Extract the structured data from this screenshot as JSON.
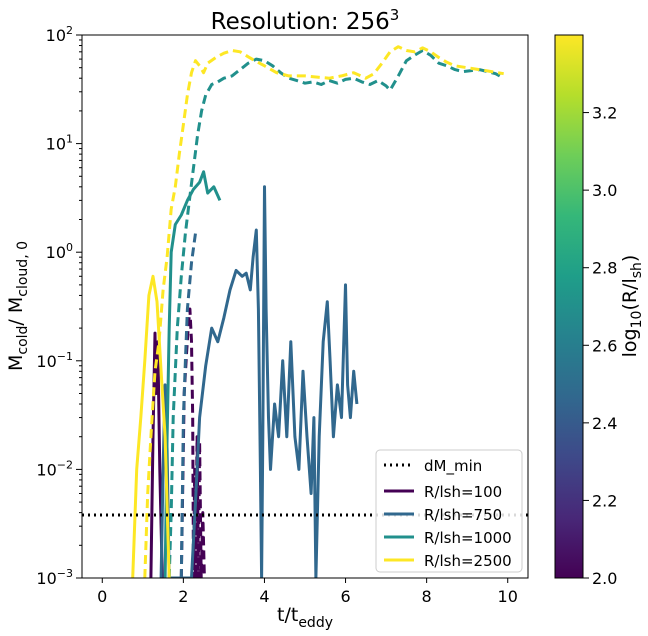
{
  "chart_data": {
    "type": "line",
    "title": "Resolution: 256",
    "title_superscript": "3",
    "xlabel": "t/t",
    "xlabel_subscript": "eddy",
    "ylabel_parts": [
      "M",
      "cold",
      "/ M",
      "cloud, 0"
    ],
    "yscale": "log",
    "xlim": [
      -0.5,
      10.5
    ],
    "ylim": [
      0.001,
      100
    ],
    "xticks": [
      0,
      2,
      4,
      6,
      8,
      10
    ],
    "yticks": [
      {
        "value": 0.001,
        "base": "10",
        "exp": "−3"
      },
      {
        "value": 0.01,
        "base": "10",
        "exp": "−2"
      },
      {
        "value": 0.1,
        "base": "10",
        "exp": "−1"
      },
      {
        "value": 1,
        "base": "10",
        "exp": "0"
      },
      {
        "value": 10,
        "base": "10",
        "exp": "1"
      },
      {
        "value": 100,
        "base": "10",
        "exp": "2"
      }
    ],
    "grid": false,
    "legend_position": "lower-right",
    "threshold": {
      "name": "dM_min",
      "value": 0.0038,
      "style": "dotted",
      "color": "#000000"
    },
    "series": [
      {
        "name": "R/lsh=100",
        "color": "#440154",
        "solid": [
          [
            1.2,
            0.001
          ],
          [
            1.25,
            0.02
          ],
          [
            1.3,
            0.18
          ],
          [
            1.33,
            0.05
          ],
          [
            1.37,
            0.15
          ],
          [
            1.42,
            0.01
          ],
          [
            1.48,
            0.001
          ]
        ],
        "dashed": [
          [
            1.95,
            0.001
          ],
          [
            2.02,
            0.05
          ],
          [
            2.08,
            0.12
          ],
          [
            2.12,
            0.2
          ],
          [
            2.16,
            0.3
          ],
          [
            2.2,
            0.15
          ],
          [
            2.23,
            0.03
          ],
          [
            2.25,
            0.001
          ],
          [
            2.28,
            0.01
          ],
          [
            2.3,
            0.001
          ],
          [
            2.34,
            0.02
          ],
          [
            2.37,
            0.001
          ],
          [
            2.4,
            0.018
          ],
          [
            2.44,
            0.001
          ],
          [
            2.48,
            0.004
          ],
          [
            2.52,
            0.001
          ]
        ]
      },
      {
        "name": "R/lsh=750",
        "color": "#31688e",
        "solid": [
          [
            1.45,
            0.001
          ],
          [
            1.5,
            0.01
          ],
          [
            1.55,
            0.06
          ],
          [
            1.6,
            0.015
          ],
          [
            1.65,
            0.001
          ],
          [
            2.2,
            0.001
          ],
          [
            2.3,
            0.005
          ],
          [
            2.4,
            0.03
          ],
          [
            2.55,
            0.09
          ],
          [
            2.7,
            0.2
          ],
          [
            2.85,
            0.15
          ],
          [
            3.0,
            0.25
          ],
          [
            3.15,
            0.45
          ],
          [
            3.3,
            0.68
          ],
          [
            3.45,
            0.6
          ],
          [
            3.55,
            0.64
          ],
          [
            3.65,
            0.45
          ],
          [
            3.72,
            0.9
          ],
          [
            3.8,
            1.6
          ],
          [
            3.85,
            0.3
          ],
          [
            3.9,
            0.01
          ],
          [
            3.93,
            0.001
          ],
          [
            3.96,
            0.02
          ],
          [
            4.0,
            4.0
          ],
          [
            4.04,
            0.3
          ],
          [
            4.1,
            0.03
          ],
          [
            4.15,
            0.01
          ],
          [
            4.25,
            0.04
          ],
          [
            4.35,
            0.02
          ],
          [
            4.45,
            0.1
          ],
          [
            4.55,
            0.02
          ],
          [
            4.65,
            0.15
          ],
          [
            4.75,
            0.02
          ],
          [
            4.85,
            0.01
          ],
          [
            4.95,
            0.08
          ],
          [
            5.05,
            0.02
          ],
          [
            5.15,
            0.006
          ],
          [
            5.22,
            0.03
          ],
          [
            5.27,
            0.001
          ],
          [
            5.35,
            0.02
          ],
          [
            5.45,
            0.15
          ],
          [
            5.55,
            0.35
          ],
          [
            5.62,
            0.1
          ],
          [
            5.7,
            0.02
          ],
          [
            5.8,
            0.06
          ],
          [
            5.9,
            0.03
          ],
          [
            6.0,
            0.5
          ],
          [
            6.05,
            0.06
          ],
          [
            6.12,
            0.03
          ],
          [
            6.2,
            0.08
          ],
          [
            6.28,
            0.04
          ]
        ],
        "dashed": [
          [
            1.95,
            0.001
          ],
          [
            2.0,
            0.03
          ],
          [
            2.05,
            0.1
          ],
          [
            2.1,
            0.3
          ],
          [
            2.2,
            0.8
          ],
          [
            2.3,
            1.5
          ]
        ]
      },
      {
        "name": "R/lsh=1000",
        "color": "#21908c",
        "solid": [
          [
            1.55,
            0.001
          ],
          [
            1.6,
            0.02
          ],
          [
            1.65,
            0.2
          ],
          [
            1.7,
            1.0
          ],
          [
            1.8,
            1.8
          ],
          [
            1.95,
            2.2
          ],
          [
            2.1,
            3.0
          ],
          [
            2.25,
            3.8
          ],
          [
            2.4,
            4.4
          ],
          [
            2.5,
            5.5
          ],
          [
            2.6,
            3.5
          ],
          [
            2.75,
            4.0
          ],
          [
            2.9,
            3.0
          ]
        ],
        "dashed": [
          [
            1.65,
            0.001
          ],
          [
            1.7,
            0.004
          ],
          [
            1.75,
            0.03
          ],
          [
            1.85,
            0.2
          ],
          [
            1.95,
            0.6
          ],
          [
            2.05,
            1.5
          ],
          [
            2.15,
            3.0
          ],
          [
            2.25,
            6.0
          ],
          [
            2.35,
            12
          ],
          [
            2.45,
            20
          ],
          [
            2.55,
            28
          ],
          [
            2.7,
            35
          ],
          [
            2.85,
            37
          ],
          [
            3.0,
            40
          ],
          [
            3.2,
            42
          ],
          [
            3.4,
            48
          ],
          [
            3.6,
            55
          ],
          [
            3.8,
            60
          ],
          [
            4.0,
            58
          ],
          [
            4.2,
            52
          ],
          [
            4.4,
            45
          ],
          [
            4.6,
            40
          ],
          [
            4.8,
            38
          ],
          [
            5.0,
            36
          ],
          [
            5.2,
            37
          ],
          [
            5.4,
            35
          ],
          [
            5.6,
            38
          ],
          [
            5.8,
            36
          ],
          [
            6.0,
            39
          ],
          [
            6.2,
            40
          ],
          [
            6.4,
            37
          ],
          [
            6.6,
            35
          ],
          [
            6.8,
            38
          ],
          [
            7.0,
            34
          ],
          [
            7.1,
            31
          ],
          [
            7.3,
            42
          ],
          [
            7.5,
            58
          ],
          [
            7.7,
            65
          ],
          [
            7.9,
            72
          ],
          [
            8.1,
            65
          ],
          [
            8.3,
            55
          ],
          [
            8.5,
            52
          ],
          [
            8.7,
            48
          ],
          [
            8.9,
            46
          ],
          [
            9.1,
            47
          ],
          [
            9.3,
            48
          ],
          [
            9.5,
            46
          ],
          [
            9.7,
            44
          ],
          [
            9.9,
            40
          ]
        ]
      },
      {
        "name": "R/lsh=2500",
        "color": "#fde725",
        "solid": [
          [
            0.75,
            0.001
          ],
          [
            0.85,
            0.01
          ],
          [
            0.95,
            0.03
          ],
          [
            1.05,
            0.1
          ],
          [
            1.15,
            0.4
          ],
          [
            1.25,
            0.6
          ],
          [
            1.35,
            0.35
          ],
          [
            1.45,
            0.08
          ],
          [
            1.55,
            0.02
          ],
          [
            1.65,
            0.001
          ]
        ],
        "dashed": [
          [
            1.05,
            0.001
          ],
          [
            1.12,
            0.006
          ],
          [
            1.2,
            0.02
          ],
          [
            1.3,
            0.08
          ],
          [
            1.4,
            0.15
          ],
          [
            1.5,
            0.45
          ],
          [
            1.6,
            0.9
          ],
          [
            1.7,
            2.5
          ],
          [
            1.8,
            4.0
          ],
          [
            1.9,
            8.0
          ],
          [
            2.0,
            15
          ],
          [
            2.1,
            28
          ],
          [
            2.2,
            45
          ],
          [
            2.3,
            58
          ],
          [
            2.4,
            52
          ],
          [
            2.5,
            45
          ],
          [
            2.6,
            55
          ],
          [
            2.8,
            62
          ],
          [
            3.0,
            68
          ],
          [
            3.2,
            72
          ],
          [
            3.4,
            70
          ],
          [
            3.6,
            63
          ],
          [
            3.8,
            57
          ],
          [
            4.0,
            52
          ],
          [
            4.3,
            45
          ],
          [
            4.6,
            42
          ],
          [
            5.0,
            42
          ],
          [
            5.3,
            41
          ],
          [
            5.6,
            40
          ],
          [
            5.9,
            42
          ],
          [
            6.2,
            45
          ],
          [
            6.5,
            40
          ],
          [
            6.7,
            44
          ],
          [
            6.9,
            55
          ],
          [
            7.1,
            70
          ],
          [
            7.3,
            78
          ],
          [
            7.5,
            72
          ],
          [
            7.7,
            70
          ],
          [
            7.9,
            76
          ],
          [
            8.1,
            70
          ],
          [
            8.3,
            62
          ],
          [
            8.5,
            56
          ],
          [
            8.7,
            52
          ],
          [
            9.0,
            50
          ],
          [
            9.3,
            48
          ],
          [
            9.6,
            46
          ],
          [
            9.9,
            44
          ]
        ]
      }
    ],
    "colorbar": {
      "label_prefix": "log",
      "label_sub": "10",
      "label_mid": "(R/l",
      "label_sub2": "sh",
      "label_suffix": ")",
      "range": [
        2.0,
        3.4
      ],
      "ticks": [
        "2.0",
        "2.2",
        "2.4",
        "2.6",
        "2.8",
        "3.0",
        "3.2"
      ],
      "colors": [
        "#440154",
        "#482878",
        "#3e4989",
        "#31688e",
        "#26828e",
        "#1f9e89",
        "#35b779",
        "#6ece58",
        "#b5de2b",
        "#fde725"
      ]
    }
  }
}
